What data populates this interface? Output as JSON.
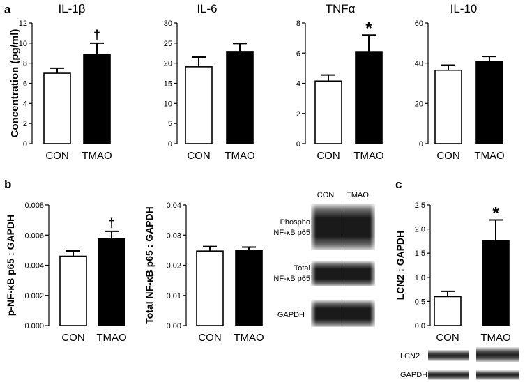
{
  "panel_letters": {
    "a": "a",
    "b": "b",
    "c": "c"
  },
  "colors": {
    "con_fill": "#ffffff",
    "tmao_fill": "#000000",
    "axis": "#000000"
  },
  "chart_data": [
    {
      "id": "il1b",
      "type": "bar",
      "panel": "a",
      "title": "IL-1β",
      "ylabel": "Concentration (pg/ml)",
      "categories": [
        "CON",
        "TMAO"
      ],
      "values": [
        7.0,
        8.85
      ],
      "errors": [
        0.5,
        1.15
      ],
      "ylim": [
        0,
        12
      ],
      "yticks": [
        "0",
        "2",
        "4",
        "6",
        "8",
        "10",
        "12"
      ],
      "annotation": {
        "index": 1,
        "text": "†"
      }
    },
    {
      "id": "il6",
      "type": "bar",
      "panel": "a",
      "title": "IL-6",
      "ylabel": "",
      "categories": [
        "CON",
        "TMAO"
      ],
      "values": [
        19.1,
        22.9
      ],
      "errors": [
        2.4,
        2.0
      ],
      "ylim": [
        0,
        30
      ],
      "yticks": [
        "0",
        "5",
        "10",
        "15",
        "20",
        "25",
        "30"
      ]
    },
    {
      "id": "tnfa",
      "type": "bar",
      "panel": "a",
      "title": "TNFα",
      "ylabel": "",
      "categories": [
        "CON",
        "TMAO"
      ],
      "values": [
        4.15,
        6.1
      ],
      "errors": [
        0.4,
        1.1
      ],
      "ylim": [
        0,
        8
      ],
      "yticks": [
        "0",
        "2",
        "4",
        "6",
        "8"
      ],
      "annotation": {
        "index": 1,
        "text": "*"
      }
    },
    {
      "id": "il10",
      "type": "bar",
      "panel": "a",
      "title": "IL-10",
      "ylabel": "",
      "categories": [
        "CON",
        "TMAO"
      ],
      "values": [
        36.5,
        40.8
      ],
      "errors": [
        2.5,
        2.5
      ],
      "ylim": [
        0,
        60
      ],
      "yticks": [
        "0",
        "20",
        "40",
        "60"
      ]
    },
    {
      "id": "pnfkb",
      "type": "bar",
      "panel": "b",
      "title": "",
      "ylabel": "p-NF-κB p65 : GAPDH",
      "categories": [
        "CON",
        "TMAO"
      ],
      "values": [
        0.0046,
        0.00575
      ],
      "errors": [
        0.00035,
        0.0005
      ],
      "ylim": [
        0,
        0.008
      ],
      "yticks": [
        "0.000",
        "0.002",
        "0.004",
        "0.006",
        "0.008"
      ],
      "annotation": {
        "index": 1,
        "text": "†"
      }
    },
    {
      "id": "totnfkb",
      "type": "bar",
      "panel": "b",
      "title": "",
      "ylabel": "Total NF-κB p65 : GAPDH",
      "categories": [
        "CON",
        "TMAO"
      ],
      "values": [
        0.0247,
        0.0248
      ],
      "errors": [
        0.0015,
        0.0012
      ],
      "ylim": [
        0,
        0.04
      ],
      "yticks": [
        "0.00",
        "0.01",
        "0.02",
        "0.03",
        "0.04"
      ]
    },
    {
      "id": "lcn2",
      "type": "bar",
      "panel": "c",
      "title": "",
      "ylabel": "LCN2 : GAPDH",
      "categories": [
        "CON",
        "TMAO"
      ],
      "values": [
        0.6,
        1.76
      ],
      "errors": [
        0.11,
        0.43
      ],
      "ylim": [
        0,
        2.5
      ],
      "yticks": [
        "0.0",
        "0.5",
        "1.0",
        "1.5",
        "2.0",
        "2.5"
      ],
      "annotation": {
        "index": 1,
        "text": "*"
      }
    }
  ],
  "blot_b": {
    "lane_labels": [
      "CON",
      "TMAO"
    ],
    "rows": [
      {
        "label_lines": [
          "Phospho",
          "NF-κB p65"
        ]
      },
      {
        "label_lines": [
          "Total",
          "NF-κB p65"
        ]
      },
      {
        "label_lines": [
          "GAPDH"
        ]
      }
    ]
  },
  "blot_c": {
    "rows": [
      {
        "label": "LCN2"
      },
      {
        "label": "GAPDH"
      }
    ]
  }
}
